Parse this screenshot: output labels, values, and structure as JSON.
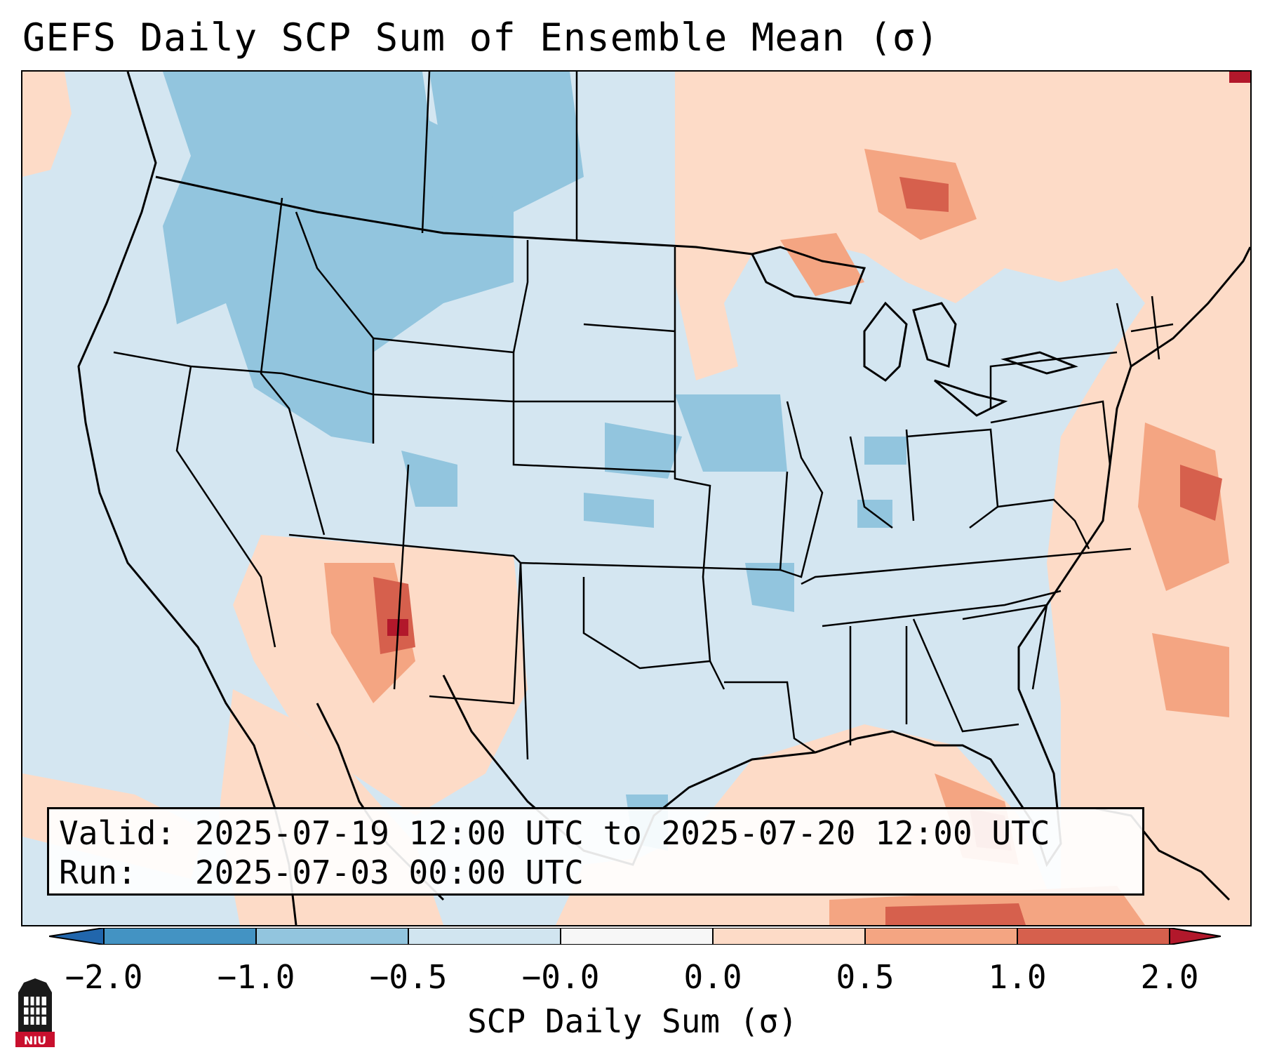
{
  "title": "GEFS Daily SCP Sum of Ensemble Mean (σ)",
  "info": {
    "valid_label": "Valid:",
    "valid_value": "2025-07-19 12:00 UTC to 2025-07-20 12:00 UTC",
    "run_label": "Run:",
    "run_value": "2025-07-03 00:00 UTC"
  },
  "colorbar": {
    "label": "SCP Daily Sum (σ)",
    "ticks": [
      "−2.0",
      "−1.0",
      "−0.5",
      "−0.0",
      "0.0",
      "0.5",
      "1.0",
      "2.0"
    ],
    "bins": [
      {
        "range": "< -2.0",
        "color": "#2166ac"
      },
      {
        "range": "-2.0 to -1.0",
        "color": "#4393c3"
      },
      {
        "range": "-1.0 to -0.5",
        "color": "#92c5de"
      },
      {
        "range": "-0.5 to -0.0",
        "color": "#d1e5f0"
      },
      {
        "range": "-0.0 to 0.0",
        "color": "#f7f7f7"
      },
      {
        "range": "0.0 to 0.5",
        "color": "#fddbc7"
      },
      {
        "range": "0.5 to 1.0",
        "color": "#f4a582"
      },
      {
        "range": "1.0 to 2.0",
        "color": "#d6604d"
      },
      {
        "range": "> 2.0",
        "color": "#b2182b"
      }
    ]
  },
  "logo": {
    "text": "NIU"
  },
  "colors": {
    "neutral_blue": "#d1e5f0",
    "light_blue": "#92c5de",
    "light_red": "#fddbc7",
    "mid_red": "#f4a582",
    "dark_red": "#d6604d",
    "max_red": "#b2182b"
  }
}
